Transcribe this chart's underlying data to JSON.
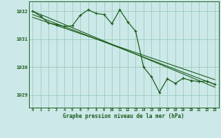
{
  "background_color": "#cce8e8",
  "grid_color": "#99ccbb",
  "line_color": "#1a5c1a",
  "xlabel": "Graphe pression niveau de la mer (hPa)",
  "ylim": [
    1028.55,
    1032.35
  ],
  "yticks": [
    1029,
    1030,
    1031,
    1032
  ],
  "xlim": [
    -0.5,
    23.5
  ],
  "xticks": [
    0,
    1,
    2,
    3,
    4,
    5,
    6,
    7,
    8,
    9,
    10,
    11,
    12,
    13,
    14,
    15,
    16,
    17,
    18,
    19,
    20,
    21,
    22,
    23
  ],
  "series": {
    "main": {
      "x": [
        0,
        1,
        2,
        3,
        4,
        5,
        6,
        7,
        8,
        9,
        10,
        11,
        12,
        13,
        14,
        15,
        16,
        17,
        18,
        19,
        20,
        21,
        22,
        23
      ],
      "y": [
        1032.0,
        1031.82,
        1031.58,
        1031.52,
        1031.45,
        1031.48,
        1031.85,
        1032.05,
        1031.92,
        1031.88,
        1031.55,
        1032.05,
        1031.62,
        1031.28,
        1030.0,
        1029.65,
        1029.1,
        1029.58,
        1029.42,
        1029.6,
        1029.52,
        1029.48,
        1029.5,
        1029.38
      ]
    },
    "trend1": {
      "x": [
        0,
        23
      ],
      "y": [
        1032.0,
        1029.28
      ]
    },
    "trend2": {
      "x": [
        0,
        23
      ],
      "y": [
        1031.88,
        1029.38
      ]
    },
    "trend3": {
      "x": [
        0,
        23
      ],
      "y": [
        1031.78,
        1029.55
      ]
    }
  }
}
